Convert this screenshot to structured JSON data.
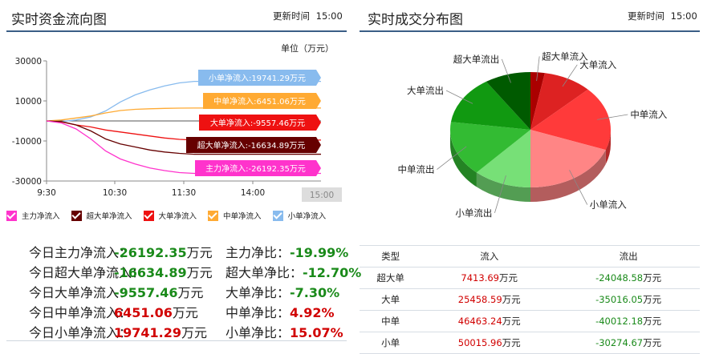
{
  "left": {
    "title": "实时资金流向图",
    "update_label": "更新时间",
    "update_time": "15:00",
    "unit_label": "单位（万元）"
  },
  "right": {
    "title": "实时成交分布图",
    "update_label": "更新时间",
    "update_time": "15:00"
  },
  "colors": {
    "main": "#ff33cc",
    "super": "#660000",
    "big": "#ee1111",
    "mid": "#ffaa33",
    "small": "#88bbee"
  },
  "chart_data": [
    {
      "type": "line",
      "x_ticks": [
        "9:30",
        "10:30",
        "11:30",
        "14:00"
      ],
      "x_marker": "15:00",
      "y_ticks": [
        30000,
        10000,
        -10000,
        -30000
      ],
      "ylim": [
        -30000,
        30000
      ],
      "series": [
        {
          "key": "small",
          "name": "小单净流入",
          "label": "小单净流入:19741.29万元",
          "values": [
            0,
            -300,
            500,
            2000,
            5000,
            9500,
            13000,
            15500,
            17500,
            19000,
            19741.29
          ]
        },
        {
          "key": "mid",
          "name": "中单净流入",
          "label": "中单净流入:6451.06万元",
          "values": [
            0,
            500,
            1500,
            2500,
            4000,
            5200,
            5800,
            6100,
            6300,
            6400,
            6451.06
          ]
        },
        {
          "key": "big",
          "name": "大单净流入",
          "label": "大单净流入:-9557.46万元",
          "values": [
            0,
            -500,
            -2000,
            -3000,
            -4500,
            -5500,
            -6500,
            -7500,
            -8500,
            -9200,
            -9557.46
          ]
        },
        {
          "key": "super",
          "name": "超大单净流入",
          "label": "超大单净流入:-16634.89万元",
          "values": [
            0,
            -300,
            -2000,
            -5000,
            -9000,
            -11500,
            -13000,
            -14500,
            -15500,
            -16200,
            -16634.89
          ]
        },
        {
          "key": "main",
          "name": "主力净流入",
          "label": "主力净流入:-26192.35万元",
          "values": [
            0,
            -1000,
            -4000,
            -9000,
            -15000,
            -19000,
            -21500,
            -23500,
            -24800,
            -25800,
            -26192.35
          ]
        }
      ],
      "legend": [
        "主力净流入",
        "超大单净流入",
        "大单净流入",
        "中单净流入",
        "小单净流入"
      ]
    },
    {
      "type": "pie",
      "slices": [
        {
          "name": "超大单流入",
          "value": 7413.69,
          "color": "#aa0000"
        },
        {
          "name": "大单流入",
          "value": 25458.59,
          "color": "#dd2222"
        },
        {
          "name": "中单流入",
          "value": 46463.24,
          "color": "#ff3a3a"
        },
        {
          "name": "小单流入",
          "value": 50015.96,
          "color": "#ff8585"
        },
        {
          "name": "小单流出",
          "value": 30274.67,
          "color": "#77e077"
        },
        {
          "name": "中单流出",
          "value": 40012.18,
          "color": "#33bb33"
        },
        {
          "name": "大单流出",
          "value": 35016.05,
          "color": "#119911"
        },
        {
          "name": "超大单流出",
          "value": 24048.58,
          "color": "#005a00"
        }
      ]
    }
  ],
  "stats": [
    {
      "label": "今日主力净流入：",
      "value": "-26192.35",
      "unit": "万元",
      "ratio_label": "主力净比：",
      "ratio": "-19.99%",
      "sign": "neg"
    },
    {
      "label": "今日超大单净流入：",
      "value": "-16634.89",
      "unit": "万元",
      "ratio_label": "超大单净比：",
      "ratio": "-12.70%",
      "sign": "neg"
    },
    {
      "label": "今日大单净流入：",
      "value": "-9557.46",
      "unit": "万元",
      "ratio_label": "大单净比：",
      "ratio": "-7.30%",
      "sign": "neg"
    },
    {
      "label": "今日中单净流入：",
      "value": "6451.06",
      "unit": "万元",
      "ratio_label": "中单净比：",
      "ratio": "4.92%",
      "sign": "pos"
    },
    {
      "label": "今日小单净流入：",
      "value": "19741.29",
      "unit": "万元",
      "ratio_label": "小单净比：",
      "ratio": "15.07%",
      "sign": "pos"
    }
  ],
  "table": {
    "headers": [
      "类型",
      "流入",
      "流出"
    ],
    "rows": [
      {
        "type": "超大单",
        "in": "7413.69",
        "out": "-24048.58"
      },
      {
        "type": "大单",
        "in": "25458.59",
        "out": "-35016.05"
      },
      {
        "type": "中单",
        "in": "46463.24",
        "out": "-40012.18"
      },
      {
        "type": "小单",
        "in": "50015.96",
        "out": "-30274.67"
      }
    ],
    "unit": "万元"
  }
}
